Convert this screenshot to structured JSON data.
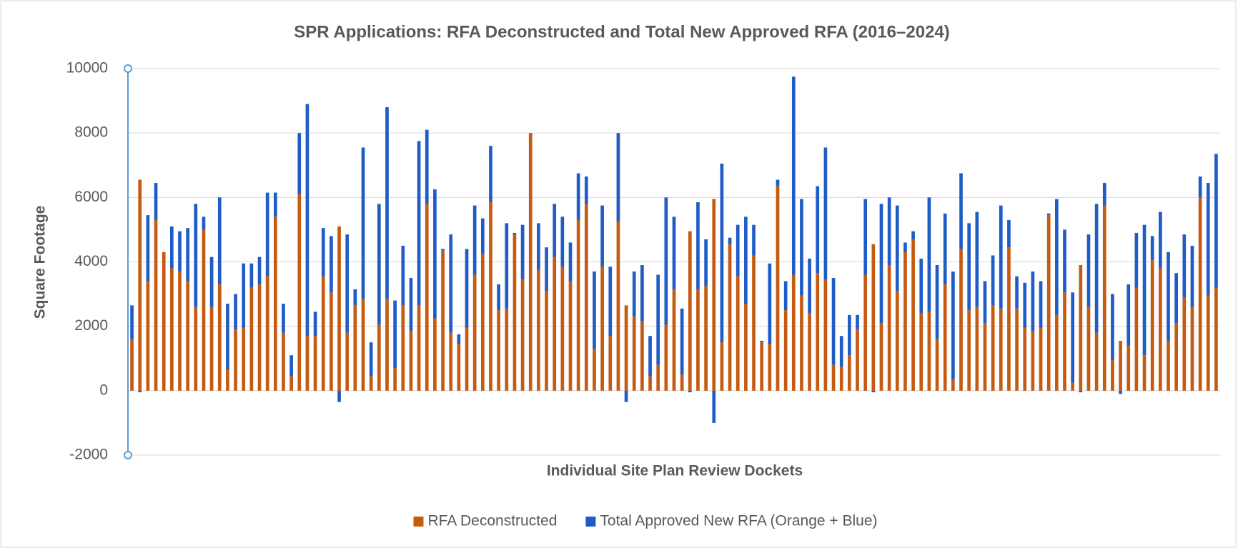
{
  "chart_data": {
    "type": "stacked_bar",
    "title": "SPR Applications: RFA Deconstructed and Total New Approved RFA (2016–2024)",
    "x_label": "Individual Site Plan Review Dockets",
    "y_label": "Square Footage",
    "ylim": [
      -2000,
      10000
    ],
    "yticks": [
      -2000,
      0,
      2000,
      4000,
      6000,
      8000,
      10000
    ],
    "grid": true,
    "legend": "bottom",
    "categories": [
      null,
      null,
      null,
      null,
      null,
      null,
      null,
      null,
      null,
      null,
      null,
      null,
      null,
      null,
      null,
      null,
      null,
      null,
      null,
      null,
      null,
      null,
      null,
      null,
      null,
      null,
      null,
      null,
      null,
      null,
      null,
      null,
      null,
      null,
      null,
      null,
      null,
      null,
      null,
      null,
      null,
      null,
      null,
      null,
      null,
      null,
      null,
      null,
      null,
      null,
      null,
      null,
      null,
      null,
      null,
      null,
      null,
      null,
      null,
      null,
      null,
      null,
      null,
      null,
      null,
      null,
      null,
      null,
      null,
      null,
      null,
      null,
      null,
      null,
      null,
      null,
      null,
      null,
      null,
      null,
      null,
      null,
      null,
      null,
      null,
      null,
      null,
      null,
      null,
      null,
      null,
      null,
      null,
      null,
      null,
      null,
      null,
      null,
      null,
      null,
      null,
      null,
      null,
      null,
      null,
      null,
      null,
      null,
      null,
      null,
      null,
      null,
      null,
      null,
      null,
      null,
      null,
      null,
      null,
      null,
      null,
      null,
      null,
      null,
      null,
      null,
      null,
      null,
      null,
      null,
      null,
      null,
      null,
      null,
      null,
      null,
      null
    ],
    "series": [
      {
        "name": "RFA Deconstructed",
        "color": "#c55a11",
        "values": [
          1600,
          6550,
          3400,
          5300,
          4300,
          3800,
          3700,
          3400,
          2600,
          5000,
          2600,
          3300,
          650,
          1900,
          1950,
          3200,
          3300,
          3550,
          5400,
          1800,
          450,
          6100,
          1700,
          1700,
          3550,
          3050,
          5100,
          1800,
          2650,
          2850,
          450,
          2050,
          2850,
          700,
          2650,
          1850,
          2650,
          5800,
          2250,
          4350,
          1800,
          1450,
          1950,
          3600,
          4250,
          5850,
          2500,
          2550,
          4850,
          3450,
          8000,
          3750,
          3100,
          4150,
          3850,
          3400,
          5300,
          5800,
          1300,
          3850,
          1700,
          5250,
          2650,
          2300,
          2150,
          450,
          800,
          2050,
          3150,
          500,
          4950,
          3150,
          3250,
          5950,
          1500,
          4550,
          3550,
          2700,
          4200,
          1500,
          1450,
          6350,
          2500,
          3600,
          2950,
          2400,
          3650,
          3450,
          800,
          750,
          1100,
          1900,
          3600,
          4550,
          2100,
          3900,
          3100,
          4300,
          4700,
          2400,
          2450,
          1600,
          3300,
          350,
          4400,
          2500,
          2600,
          2100,
          2650,
          2550,
          4450,
          2550,
          1950,
          1850,
          1950,
          5450,
          2350,
          3050,
          250,
          3900,
          2600,
          1800,
          5750,
          950,
          1550,
          1400,
          3200,
          1100,
          4050,
          3800,
          1550,
          2100,
          2900,
          2600,
          6000,
          2950,
          3200
        ]
      },
      {
        "name": "Total Approved New RFA (Orange + Blue)",
        "color": "#1f5cc6",
        "values": [
          1050,
          -50,
          2050,
          1150,
          0,
          1300,
          1250,
          1650,
          3200,
          400,
          1550,
          2700,
          2050,
          1100,
          2000,
          750,
          850,
          2600,
          750,
          900,
          650,
          1900,
          7200,
          750,
          1500,
          1750,
          -350,
          3050,
          500,
          4700,
          1050,
          3750,
          5950,
          2100,
          1850,
          1650,
          5100,
          2300,
          4000,
          50,
          3050,
          300,
          2450,
          2150,
          1100,
          1750,
          800,
          2650,
          50,
          1700,
          0,
          1450,
          1350,
          1650,
          1550,
          1200,
          1450,
          850,
          2400,
          1900,
          2150,
          2750,
          -350,
          1400,
          1750,
          1250,
          2800,
          3950,
          2250,
          2050,
          -50,
          2700,
          1450,
          -1000,
          5550,
          200,
          1600,
          2700,
          950,
          50,
          2500,
          200,
          900,
          6150,
          3000,
          1700,
          2700,
          4100,
          2700,
          950,
          1250,
          450,
          2350,
          -50,
          3700,
          2100,
          2650,
          300,
          250,
          1700,
          3550,
          2300,
          2200,
          3350,
          2350,
          2700,
          2950,
          1300,
          1550,
          3200,
          850,
          1000,
          1400,
          1850,
          1450,
          50,
          3600,
          1950,
          2800,
          -50,
          2250,
          4000,
          700,
          2050,
          -100,
          1900,
          1700,
          4050,
          750,
          1750,
          2750,
          1550,
          1950,
          1900,
          650,
          3500,
          4150
        ]
      }
    ]
  }
}
